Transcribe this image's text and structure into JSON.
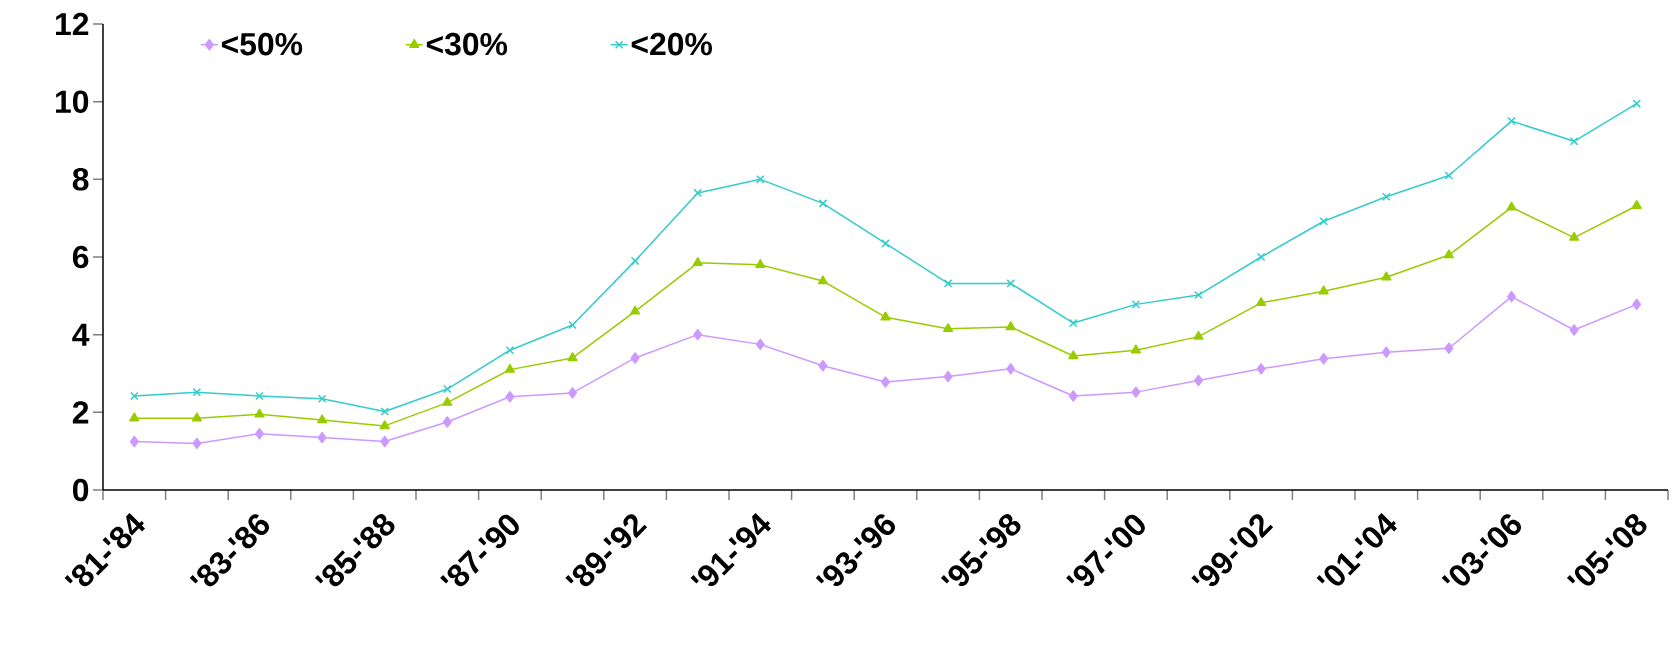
{
  "chart_data": {
    "type": "line",
    "categories": [
      "'81-'84",
      null,
      "'83-'86",
      null,
      "'85-'88",
      null,
      "'87-'90",
      null,
      "'89-'92",
      null,
      "'91-'94",
      null,
      "'93-'96",
      null,
      "'95-'98",
      null,
      "'97-'00",
      null,
      "'99-'02",
      null,
      "'01-'04",
      null,
      "'03-'06",
      null,
      "'05-'08"
    ],
    "series": [
      {
        "name": "<50%",
        "color": "#cc99ff",
        "marker": "diamond",
        "values": [
          1.25,
          1.2,
          1.45,
          1.35,
          1.25,
          1.75,
          2.4,
          2.5,
          3.4,
          4.0,
          3.75,
          3.2,
          2.78,
          2.92,
          3.12,
          2.42,
          2.52,
          2.82,
          3.12,
          3.38,
          3.55,
          3.65,
          4.98,
          4.12,
          4.78
        ]
      },
      {
        "name": "<30%",
        "color": "#99cc00",
        "marker": "triangle",
        "values": [
          1.85,
          1.85,
          1.95,
          1.8,
          1.65,
          2.25,
          3.1,
          3.4,
          4.6,
          5.85,
          5.8,
          5.38,
          4.45,
          4.15,
          4.2,
          3.45,
          3.6,
          3.95,
          4.82,
          5.12,
          5.48,
          6.05,
          7.28,
          6.5,
          7.32
        ]
      },
      {
        "name": "<20%",
        "color": "#33cccc",
        "marker": "cross",
        "values": [
          2.42,
          2.52,
          2.42,
          2.35,
          2.02,
          2.6,
          3.6,
          4.25,
          5.9,
          7.65,
          8.0,
          7.38,
          6.35,
          5.32,
          5.32,
          4.3,
          4.78,
          5.02,
          6.0,
          6.92,
          7.55,
          8.1,
          9.5,
          8.98,
          9.95
        ]
      }
    ],
    "ylim": [
      0,
      12
    ],
    "yticks": [
      0,
      2,
      4,
      6,
      8,
      10,
      12
    ],
    "grid": false,
    "legend": "top",
    "line_style": "solid"
  }
}
